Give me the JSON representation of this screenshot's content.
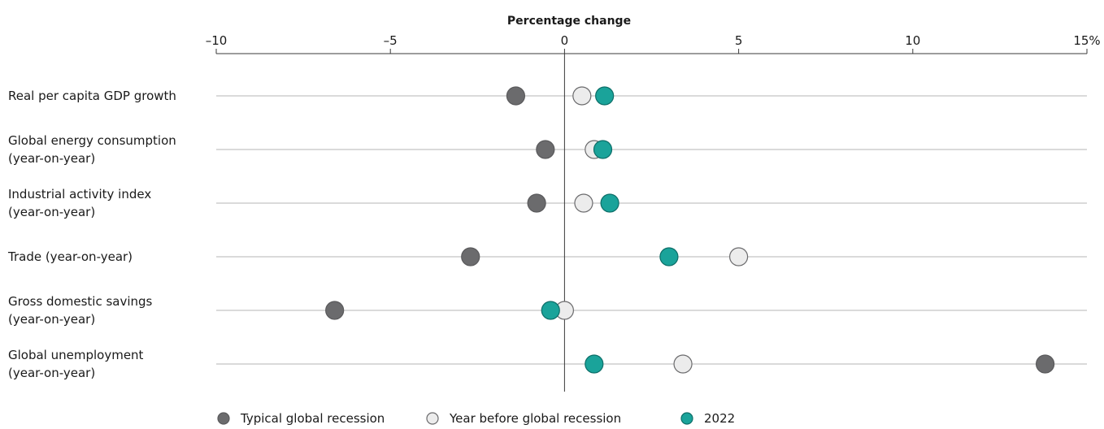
{
  "chart_data": {
    "type": "scatter",
    "title": "",
    "xlabel": "Percentage change",
    "ylabel": "",
    "xlim": [
      -10,
      15
    ],
    "xticks": [
      {
        "value": -10,
        "label": "–10"
      },
      {
        "value": -5,
        "label": "–5"
      },
      {
        "value": 0,
        "label": "0"
      },
      {
        "value": 5,
        "label": "5"
      },
      {
        "value": 10,
        "label": "10"
      },
      {
        "value": 15,
        "label": "15%"
      }
    ],
    "categories": [
      [
        "Real per capita GDP growth"
      ],
      [
        "Global energy consumption",
        "(year-on-year)"
      ],
      [
        "Industrial activity index",
        "(year-on-year)"
      ],
      [
        "Trade (year-on-year)"
      ],
      [
        "Gross domestic savings",
        "(year-on-year)"
      ],
      [
        "Global unemployment",
        "(year-on-year)"
      ]
    ],
    "series": [
      {
        "name": "Typical global recession",
        "color": "#6b6b6d",
        "stroke": "#5a5a5c",
        "values": [
          -1.4,
          -0.55,
          -0.8,
          -2.7,
          -6.6,
          13.8
        ]
      },
      {
        "name": "Year before global recession",
        "color": "#ececec",
        "stroke": "#6b6b6d",
        "values": [
          0.5,
          0.85,
          0.55,
          5.0,
          0.0,
          3.4
        ]
      },
      {
        "name": "2022",
        "color": "#1aa39a",
        "stroke": "#0d6e68",
        "values": [
          1.15,
          1.1,
          1.3,
          3.0,
          -0.4,
          0.85
        ]
      }
    ],
    "grid": true,
    "legend": "bottom"
  }
}
